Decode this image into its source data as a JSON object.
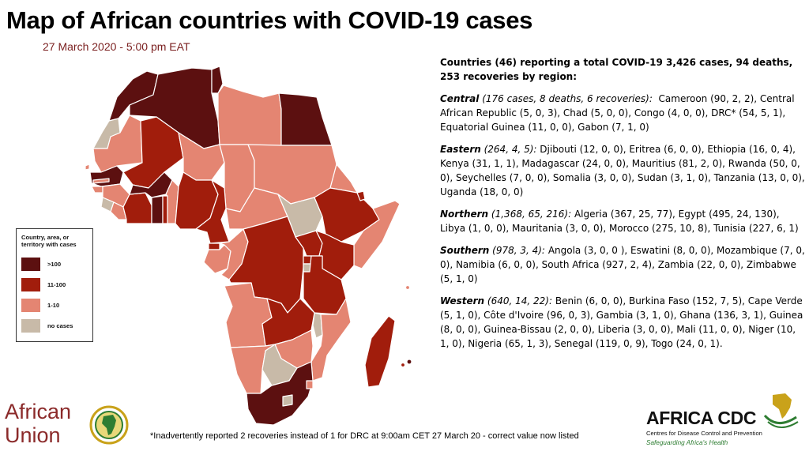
{
  "title": "Map of African countries with COVID-19 cases",
  "subtitle": "27 March 2020 - 5:00 pm EAT",
  "legend": {
    "title": "Country, area, or territory with cases",
    "items": [
      {
        "label": ">100",
        "color": "#5c1010"
      },
      {
        "label": "11-100",
        "color": "#a11d0c"
      },
      {
        "label": "1-10",
        "color": "#e48572"
      },
      {
        "label": "no cases",
        "color": "#c8baa8"
      }
    ]
  },
  "summary": {
    "header": "Countries (46) reporting a total COVID-19 3,426 cases, 94 deaths, 253 recoveries by region:",
    "regions": [
      {
        "name": "Central",
        "stats": "(176 cases, 8 deaths, 6 recoveries):",
        "countries": "Cameroon (90, 2, 2), Central African Republic (5, 0, 3), Chad (5, 0, 0), Congo (4, 0, 0), DRC* (54, 5, 1), Equatorial Guinea (11, 0, 0), Gabon (7, 1, 0)"
      },
      {
        "name": "Eastern",
        "stats": "(264, 4, 5):",
        "countries": "Djibouti (12, 0, 0), Eritrea (6, 0, 0), Ethiopia (16, 0, 4), Kenya (31, 1, 1), Madagascar (24, 0, 0), Mauritius (81, 2, 0), Rwanda (50, 0, 0), Seychelles (7, 0, 0), Somalia (3, 0, 0), Sudan (3, 1, 0), Tanzania (13, 0, 0), Uganda (18, 0, 0)"
      },
      {
        "name": "Northern",
        "stats": "(1,368, 65, 216):",
        "countries": "Algeria (367, 25, 77), Egypt (495, 24, 130), Libya (1, 0, 0), Mauritania (3, 0, 0), Morocco (275, 10, 8), Tunisia (227, 6, 1)"
      },
      {
        "name": "Southern",
        "stats": "(978, 3, 4):",
        "countries": "Angola (3, 0, 0 ), Eswatini (8, 0, 0), Mozambique (7, 0, 0),  Namibia (6, 0, 0), South Africa (927, 2, 4), Zambia (22, 0, 0), Zimbabwe (5, 1, 0)"
      },
      {
        "name": "Western",
        "stats": "(640, 14, 22):",
        "countries": "Benin (6, 0, 0), Burkina Faso (152, 7, 5), Cape Verde (5, 1, 0), Côte d'Ivoire (96, 0, 3), Gambia (3, 1, 0), Ghana (136, 3, 1), Guinea (8, 0, 0), Guinea-Bissau (2, 0, 0), Liberia (3, 0, 0), Mali (11, 0, 0), Niger (10, 1, 0), Nigeria (65, 1, 3), Senegal (119, 0, 9), Togo (24, 0, 1)."
      }
    ]
  },
  "footnote": "*Inadvertently reported 2 recoveries instead of 1 for DRC at 9:00am CET 27 March 20 - correct value now listed",
  "logos": {
    "au_line1": "African",
    "au_line2": "Union",
    "cdc_title": "AFRICA CDC",
    "cdc_subtitle": "Centres for Disease Control and Prevention",
    "cdc_tagline": "Safeguarding Africa's Health"
  },
  "colors": {
    "over100": "#5c1010",
    "from11to100": "#a11d0c",
    "from1to10": "#e48572",
    "nocases": "#c8baa8"
  }
}
